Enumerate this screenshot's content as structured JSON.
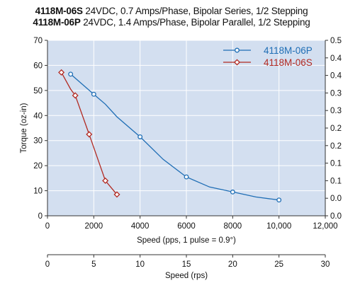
{
  "chart_data": {
    "type": "line",
    "title_lines": [
      {
        "model": "4118M-06S",
        "desc": "24VDC, 0.7 Amps/Phase, Bipolar Series, 1/2 Stepping"
      },
      {
        "model": "4118M-06P",
        "desc": "24VDC, 1.4 Amps/Phase, Bipolar Parallel, 1/2 Stepping"
      }
    ],
    "xlabel": "Speed (pps, 1 pulse = 0.9°)",
    "ylabel": "Torque (oz-in)",
    "x2label": "Speed (rps)",
    "xlim": [
      0,
      12000
    ],
    "ylim": [
      0,
      70
    ],
    "y2lim": [
      0,
      0.5
    ],
    "x2lim": [
      0,
      30
    ],
    "xticks": [
      0,
      2000,
      4000,
      6000,
      8000,
      10000,
      12000
    ],
    "xtick_labels": [
      "0",
      "2000",
      "4000",
      "6000",
      "8000",
      "10,000",
      "12,000"
    ],
    "yticks": [
      0,
      10,
      20,
      30,
      40,
      50,
      60,
      70
    ],
    "ytick_labels": [
      "0",
      "10",
      "20",
      "30",
      "40",
      "50",
      "60",
      "70"
    ],
    "y2ticks": [
      0,
      0.05,
      0.1,
      0.15,
      0.2,
      0.25,
      0.3,
      0.35,
      0.4,
      0.45,
      0.5
    ],
    "y2tick_labels": [
      "0.0",
      "0.0",
      "0.1",
      "0.1",
      "0.2",
      "0.2",
      "0.3",
      "0.3",
      "0.4",
      "0.4",
      "0.5"
    ],
    "x2ticks": [
      0,
      5,
      10,
      15,
      20,
      25,
      30
    ],
    "x2tick_labels": [
      "0",
      "5",
      "10",
      "15",
      "20",
      "25",
      "30"
    ],
    "grid": true,
    "legend_position": "top-right",
    "series": [
      {
        "name": "4118M-06P",
        "color": "#1f6eb5",
        "marker": "circle",
        "x": [
          1000,
          1500,
          2000,
          2500,
          3000,
          4000,
          5000,
          6000,
          7000,
          8000,
          9000,
          10000
        ],
        "y": [
          56.5,
          52.5,
          48.5,
          44.5,
          39.5,
          31.5,
          22.5,
          15.5,
          11.5,
          9.5,
          7.5,
          6.3
        ],
        "marker_x": [
          1000,
          2000,
          4000,
          6000,
          8000,
          10000
        ],
        "marker_y": [
          56.5,
          48.5,
          31.5,
          15.5,
          9.5,
          6.3
        ]
      },
      {
        "name": "4118M-06S",
        "color": "#b22a22",
        "marker": "diamond",
        "x": [
          600,
          1000,
          1200,
          1800,
          2500,
          3000
        ],
        "y": [
          57.2,
          50.5,
          48.0,
          32.5,
          14.0,
          8.5
        ],
        "marker_x": [
          600,
          1200,
          1800,
          2500,
          3000
        ],
        "marker_y": [
          57.2,
          48.0,
          32.5,
          14.0,
          8.5
        ]
      }
    ]
  }
}
